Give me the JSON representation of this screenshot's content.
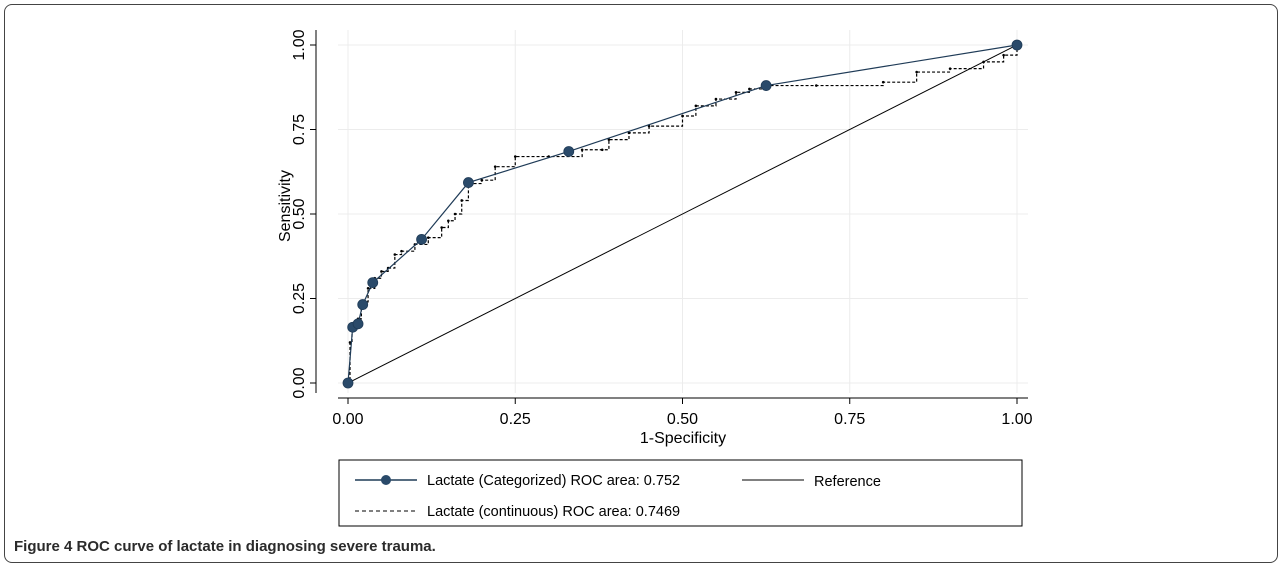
{
  "chart_data": {
    "type": "line",
    "xlabel": "1-Specificity",
    "ylabel": "Sensitivity",
    "xlim": [
      0,
      1
    ],
    "ylim": [
      0,
      1
    ],
    "xticks": [
      "0.00",
      "0.25",
      "0.50",
      "0.75",
      "1.00"
    ],
    "yticks": [
      "0.00",
      "0.25",
      "0.50",
      "0.75",
      "1.00"
    ],
    "grid": true,
    "legend_position": "bottom",
    "series": [
      {
        "name": "Lactate (Categorized) ROC area: 0.752",
        "style": "solid-markers",
        "color": "#1f3b57",
        "x": [
          0.0,
          0.007,
          0.015,
          0.022,
          0.037,
          0.11,
          0.18,
          0.33,
          0.625,
          1.0
        ],
        "y": [
          0.0,
          0.165,
          0.175,
          0.232,
          0.297,
          0.425,
          0.593,
          0.685,
          0.88,
          1.0
        ]
      },
      {
        "name": "Reference",
        "style": "solid",
        "color": "#000000",
        "x": [
          0.0,
          1.0
        ],
        "y": [
          0.0,
          1.0
        ]
      },
      {
        "name": "Lactate (continuous) ROC area: 0.7469",
        "style": "dashed",
        "color": "#000000",
        "x": [
          0.0,
          0.003,
          0.006,
          0.01,
          0.015,
          0.02,
          0.025,
          0.03,
          0.04,
          0.05,
          0.06,
          0.07,
          0.08,
          0.1,
          0.12,
          0.14,
          0.15,
          0.16,
          0.17,
          0.18,
          0.2,
          0.22,
          0.25,
          0.3,
          0.35,
          0.38,
          0.39,
          0.42,
          0.45,
          0.5,
          0.52,
          0.55,
          0.58,
          0.6,
          0.62,
          0.7,
          0.8,
          0.85,
          0.9,
          0.95,
          0.98,
          1.0
        ],
        "y": [
          0.0,
          0.12,
          0.16,
          0.17,
          0.19,
          0.22,
          0.24,
          0.28,
          0.31,
          0.33,
          0.34,
          0.38,
          0.39,
          0.41,
          0.43,
          0.46,
          0.48,
          0.5,
          0.54,
          0.59,
          0.6,
          0.64,
          0.67,
          0.67,
          0.69,
          0.69,
          0.72,
          0.74,
          0.76,
          0.79,
          0.82,
          0.84,
          0.86,
          0.87,
          0.88,
          0.88,
          0.89,
          0.92,
          0.93,
          0.95,
          0.97,
          1.0
        ]
      }
    ]
  },
  "caption": {
    "label": "Figure 4",
    "text": "ROC curve of lactate in diagnosing severe trauma."
  }
}
